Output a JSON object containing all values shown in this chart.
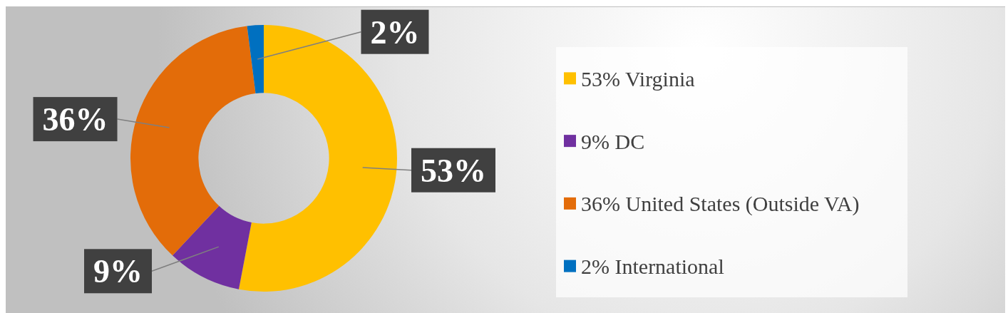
{
  "chart_data": {
    "type": "donut",
    "categories": [
      "53% Virginia",
      "9% DC",
      "36% United States (Outside VA)",
      "2% International"
    ],
    "values": [
      53,
      9,
      36,
      2
    ],
    "colors": [
      "#ffc000",
      "#7030a0",
      "#e36c09",
      "#0070c0"
    ],
    "value_labels": [
      "53%",
      "9%",
      "36%",
      "2%"
    ],
    "legend": "right"
  }
}
